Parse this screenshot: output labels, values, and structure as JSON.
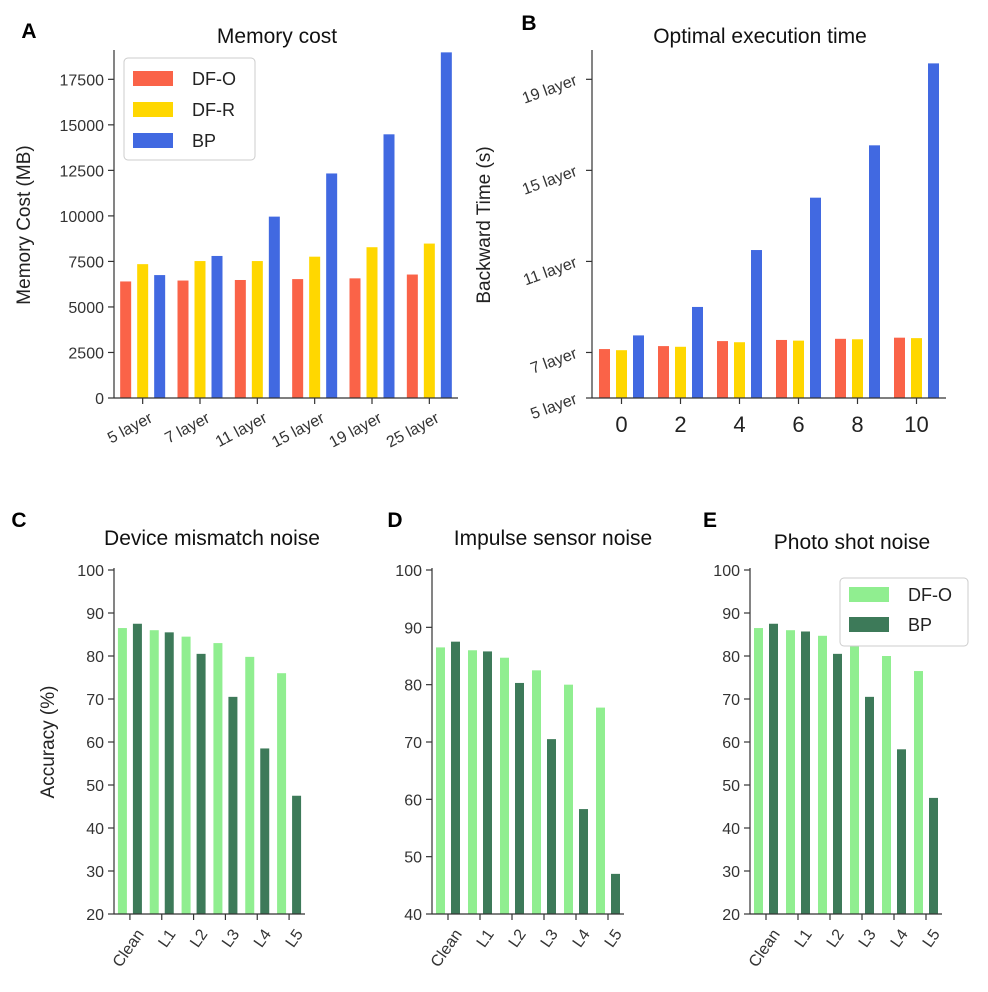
{
  "colors": {
    "df_o": "#FA6348",
    "df_r": "#FFD700",
    "bp": "#4169E1",
    "df_o_green": "#90EE90",
    "bp_green": "#3D7A59",
    "axis": "#333333"
  },
  "chart_data": [
    {
      "panel": "A",
      "type": "bar",
      "title": "Memory cost",
      "xlabel": "",
      "ylabel": "Memory Cost (MB)",
      "ylim": [
        0,
        19000
      ],
      "yticks": [
        0,
        2500,
        5000,
        7500,
        10000,
        12500,
        15000,
        17500
      ],
      "categories": [
        "5 layer",
        "7 layer",
        "11 layer",
        "15 layer",
        "19 layer",
        "25 layer"
      ],
      "series": [
        {
          "name": "DF-O",
          "color": "#FA6348",
          "values": [
            6400,
            6450,
            6480,
            6530,
            6570,
            6780
          ]
        },
        {
          "name": "DF-R",
          "color": "#FFD700",
          "values": [
            7350,
            7520,
            7520,
            7760,
            8280,
            8480
          ]
        },
        {
          "name": "BP",
          "color": "#4169E1",
          "values": [
            6750,
            7800,
            9960,
            12330,
            14480,
            18980
          ]
        }
      ],
      "legend": "top-left"
    },
    {
      "panel": "B",
      "type": "bar",
      "title": "Optimal execution time",
      "xlabel": "",
      "ylabel": "Backward Time (s)",
      "ylim": [
        5,
        20.2
      ],
      "yticks": [
        5,
        7,
        11,
        15,
        19
      ],
      "ytick_labels": [
        "5 layer",
        "7 layer",
        "11 layer",
        "15 layer",
        "19 layer"
      ],
      "categories": [
        "0",
        "2",
        "4",
        "6",
        "8",
        "10"
      ],
      "series": [
        {
          "name": "DF-O",
          "color": "#FA6348",
          "values": [
            7.15,
            7.28,
            7.5,
            7.55,
            7.6,
            7.65
          ]
        },
        {
          "name": "DF-R",
          "color": "#FFD700",
          "values": [
            7.1,
            7.25,
            7.45,
            7.52,
            7.58,
            7.63
          ]
        },
        {
          "name": "BP",
          "color": "#4169E1",
          "values": [
            7.75,
            9.0,
            11.5,
            13.8,
            16.1,
            19.7
          ]
        }
      ]
    },
    {
      "panel": "C",
      "type": "bar",
      "title": "Device mismatch noise",
      "xlabel": "",
      "ylabel": "Accuracy (%)",
      "ylim": [
        20,
        100
      ],
      "yticks": [
        20,
        30,
        40,
        50,
        60,
        70,
        80,
        90,
        100
      ],
      "categories": [
        "Clean",
        "L1",
        "L2",
        "L3",
        "L4",
        "L5"
      ],
      "series": [
        {
          "name": "DF-O",
          "color": "#90EE90",
          "values": [
            86.5,
            86.0,
            84.5,
            83.0,
            79.8,
            76.0
          ]
        },
        {
          "name": "BP",
          "color": "#3D7A59",
          "values": [
            87.5,
            85.5,
            80.5,
            70.5,
            58.5,
            47.5
          ]
        }
      ]
    },
    {
      "panel": "D",
      "type": "bar",
      "title": "Impulse sensor noise",
      "xlabel": "",
      "ylabel": "",
      "ylim": [
        40,
        100
      ],
      "yticks": [
        40,
        50,
        60,
        70,
        80,
        90,
        100
      ],
      "categories": [
        "Clean",
        "L1",
        "L2",
        "L3",
        "L4",
        "L5"
      ],
      "series": [
        {
          "name": "DF-O",
          "color": "#90EE90",
          "values": [
            86.5,
            86.0,
            84.7,
            82.5,
            80.0,
            76.0
          ]
        },
        {
          "name": "BP",
          "color": "#3D7A59",
          "values": [
            87.5,
            85.8,
            80.3,
            70.5,
            58.3,
            47.0
          ]
        }
      ]
    },
    {
      "panel": "E",
      "type": "bar",
      "title": "Photo shot noise",
      "xlabel": "",
      "ylabel": "",
      "ylim": [
        20,
        100
      ],
      "yticks": [
        20,
        30,
        40,
        50,
        60,
        70,
        80,
        90,
        100
      ],
      "categories": [
        "Clean",
        "L1",
        "L2",
        "L3",
        "L4",
        "L5"
      ],
      "series": [
        {
          "name": "DF-O",
          "color": "#90EE90",
          "values": [
            86.5,
            86.0,
            84.7,
            83.0,
            80.0,
            76.5
          ]
        },
        {
          "name": "BP",
          "color": "#3D7A59",
          "values": [
            87.5,
            85.7,
            80.5,
            70.5,
            58.3,
            47.0
          ]
        }
      ],
      "legend": "top-right"
    }
  ]
}
